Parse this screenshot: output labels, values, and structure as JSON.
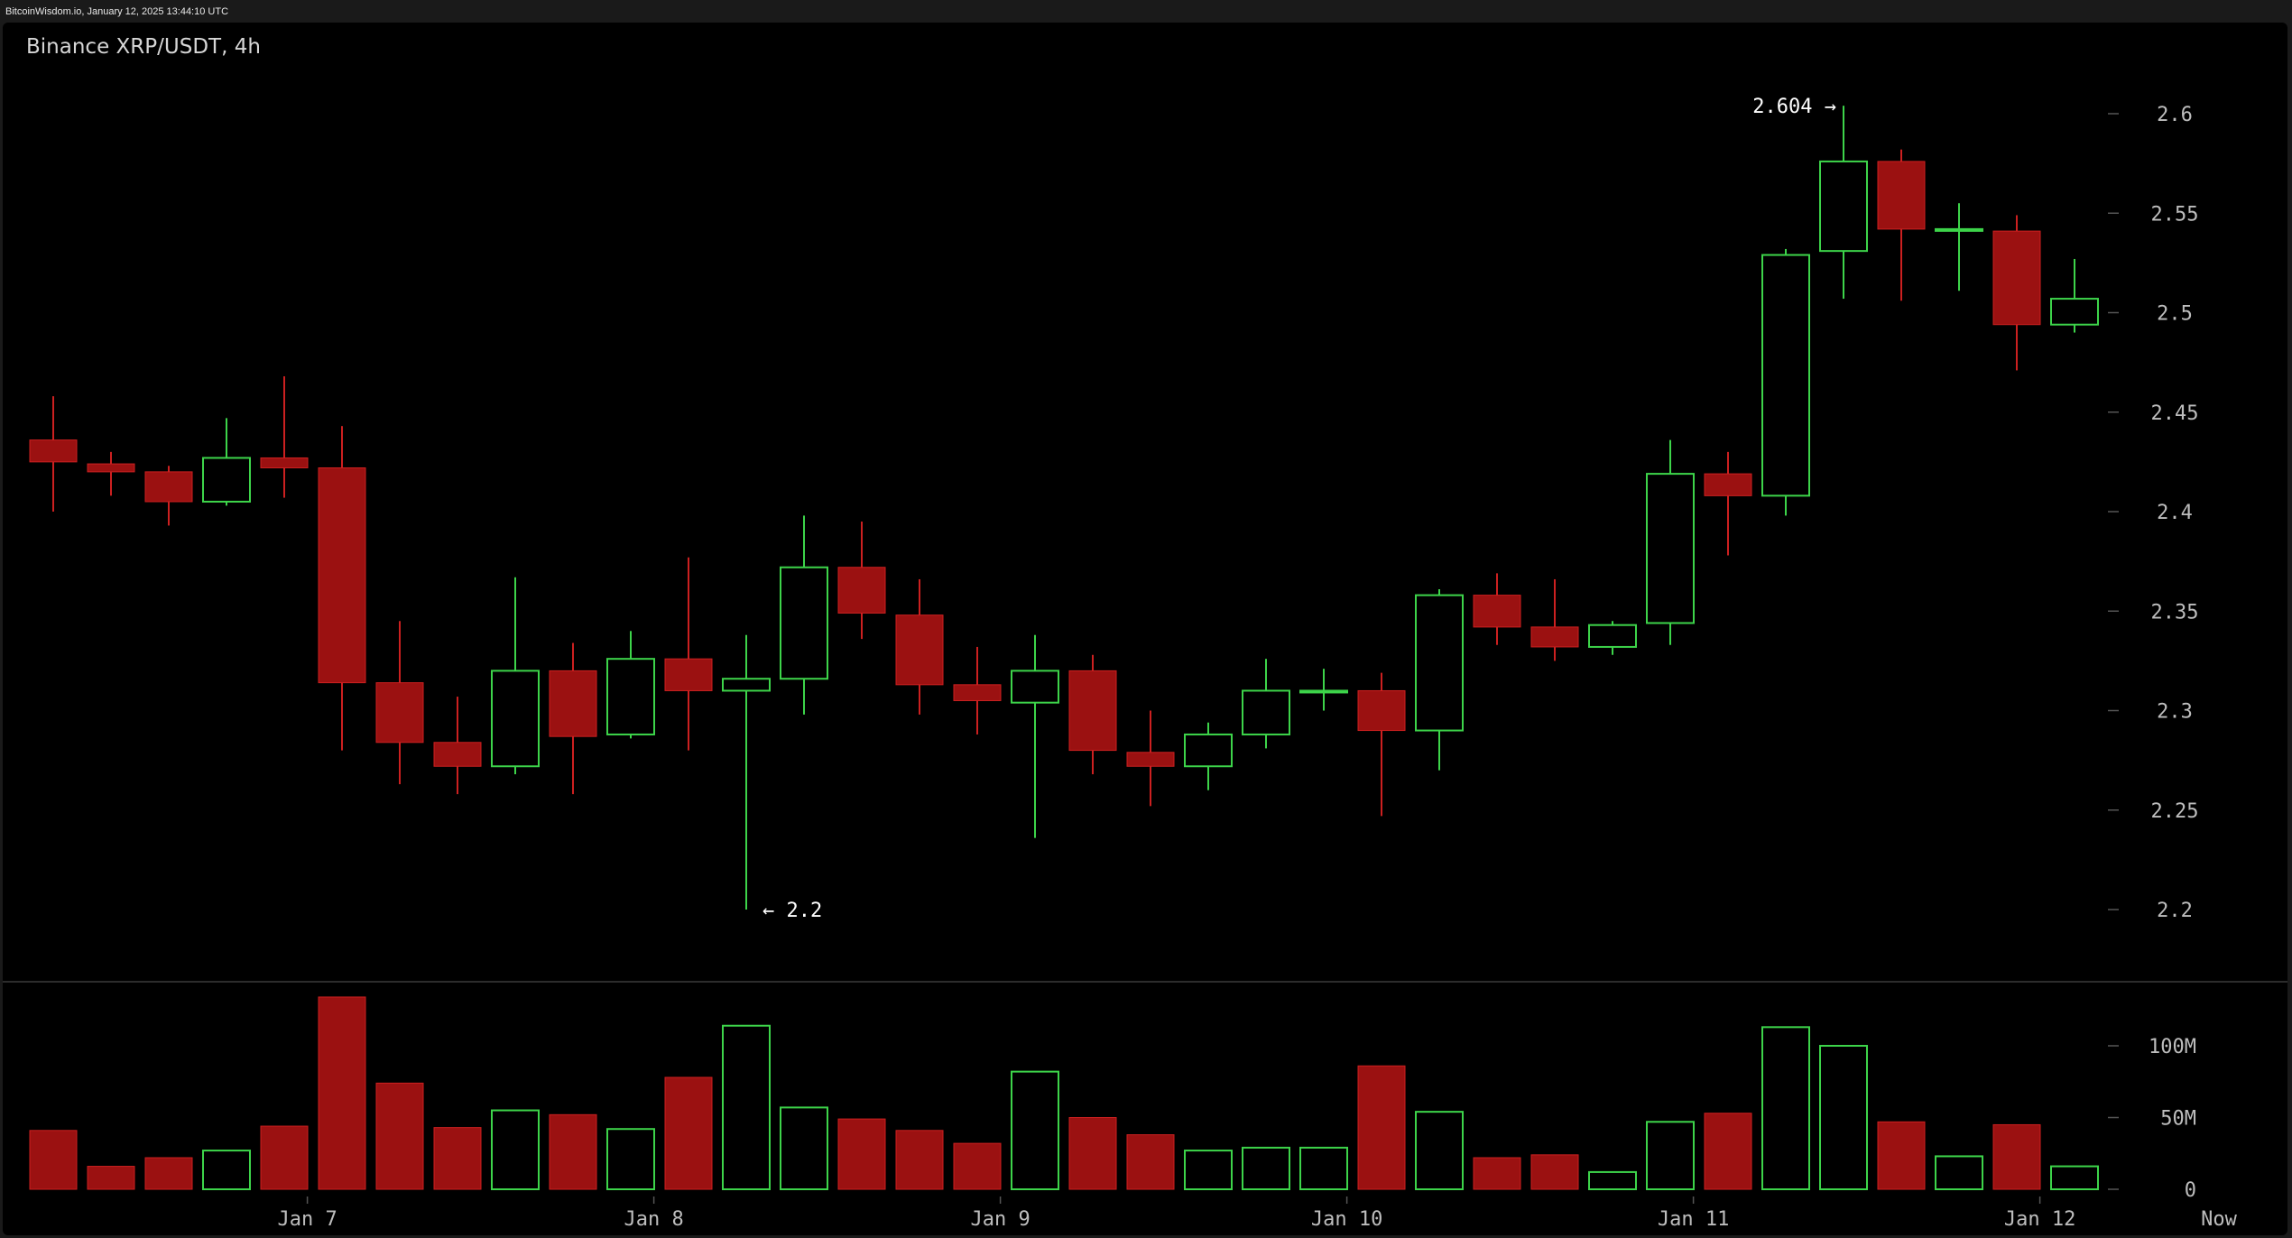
{
  "watermark": "BitcoinWisdom.io, January 12, 2025 13:44:10 UTC",
  "title": "Binance XRP/USDT, 4h",
  "colors": {
    "up": "#3dd44a",
    "down_fill": "#9b1111",
    "down_wick": "#cc2020",
    "frame": "#000000",
    "background": "#1a1a1a",
    "text": "#bdbdbd"
  },
  "chart_data": {
    "type": "candlestick",
    "pair": "XRP/USDT",
    "exchange": "Binance",
    "interval": "4h",
    "price_axis": {
      "ylim": [
        2.16,
        2.65
      ],
      "ticks": [
        2.6,
        2.55,
        2.5,
        2.45,
        2.4,
        2.35,
        2.3,
        2.25,
        2.2
      ],
      "tick_labels": [
        "2.6",
        "2.55",
        "2.5",
        "2.45",
        "2.4",
        "2.35",
        "2.3",
        "2.25",
        "2.2"
      ]
    },
    "volume_axis": {
      "ylim": [
        0,
        140
      ],
      "unit": "M",
      "ticks": [
        100,
        50,
        0
      ],
      "tick_labels": [
        "100M",
        "50M",
        "0"
      ]
    },
    "x_axis": {
      "tick_labels": [
        "Jan 7",
        "Jan 8",
        "Jan 9",
        "Jan 10",
        "Jan 11",
        "Jan 12",
        "Now"
      ],
      "tick_candle_index": [
        4.4,
        10.4,
        16.4,
        22.4,
        28.4,
        34.4,
        37.5
      ]
    },
    "annotations": [
      {
        "text": "2.604 →",
        "candle": 31,
        "price": 2.604,
        "side": "left"
      },
      {
        "text": "← 2.2",
        "candle": 12,
        "price": 2.2,
        "side": "right"
      }
    ],
    "candles": [
      {
        "open": 2.436,
        "high": 2.458,
        "low": 2.4,
        "close": 2.425,
        "volume": 41
      },
      {
        "open": 2.424,
        "high": 2.43,
        "low": 2.408,
        "close": 2.42,
        "volume": 16
      },
      {
        "open": 2.42,
        "high": 2.423,
        "low": 2.393,
        "close": 2.405,
        "volume": 22
      },
      {
        "open": 2.405,
        "high": 2.447,
        "low": 2.403,
        "close": 2.427,
        "volume": 27
      },
      {
        "open": 2.427,
        "high": 2.468,
        "low": 2.407,
        "close": 2.422,
        "volume": 44
      },
      {
        "open": 2.422,
        "high": 2.443,
        "low": 2.28,
        "close": 2.314,
        "volume": 134
      },
      {
        "open": 2.314,
        "high": 2.345,
        "low": 2.263,
        "close": 2.284,
        "volume": 74
      },
      {
        "open": 2.284,
        "high": 2.307,
        "low": 2.258,
        "close": 2.272,
        "volume": 43
      },
      {
        "open": 2.272,
        "high": 2.367,
        "low": 2.268,
        "close": 2.32,
        "volume": 55
      },
      {
        "open": 2.32,
        "high": 2.334,
        "low": 2.258,
        "close": 2.287,
        "volume": 52
      },
      {
        "open": 2.288,
        "high": 2.34,
        "low": 2.286,
        "close": 2.326,
        "volume": 42
      },
      {
        "open": 2.326,
        "high": 2.377,
        "low": 2.28,
        "close": 2.31,
        "volume": 78
      },
      {
        "open": 2.31,
        "high": 2.338,
        "low": 2.2,
        "close": 2.316,
        "volume": 114
      },
      {
        "open": 2.316,
        "high": 2.398,
        "low": 2.298,
        "close": 2.372,
        "volume": 57
      },
      {
        "open": 2.372,
        "high": 2.395,
        "low": 2.336,
        "close": 2.349,
        "volume": 49
      },
      {
        "open": 2.348,
        "high": 2.366,
        "low": 2.298,
        "close": 2.313,
        "volume": 41
      },
      {
        "open": 2.313,
        "high": 2.332,
        "low": 2.288,
        "close": 2.305,
        "volume": 32
      },
      {
        "open": 2.304,
        "high": 2.338,
        "low": 2.236,
        "close": 2.32,
        "volume": 82
      },
      {
        "open": 2.32,
        "high": 2.328,
        "low": 2.268,
        "close": 2.28,
        "volume": 50
      },
      {
        "open": 2.279,
        "high": 2.3,
        "low": 2.252,
        "close": 2.272,
        "volume": 38
      },
      {
        "open": 2.272,
        "high": 2.294,
        "low": 2.26,
        "close": 2.288,
        "volume": 27
      },
      {
        "open": 2.288,
        "high": 2.326,
        "low": 2.281,
        "close": 2.31,
        "volume": 29
      },
      {
        "open": 2.31,
        "high": 2.321,
        "low": 2.3,
        "close": 2.31,
        "volume": 29
      },
      {
        "open": 2.31,
        "high": 2.319,
        "low": 2.247,
        "close": 2.29,
        "volume": 86
      },
      {
        "open": 2.29,
        "high": 2.361,
        "low": 2.27,
        "close": 2.358,
        "volume": 54
      },
      {
        "open": 2.358,
        "high": 2.369,
        "low": 2.333,
        "close": 2.342,
        "volume": 22
      },
      {
        "open": 2.342,
        "high": 2.366,
        "low": 2.325,
        "close": 2.332,
        "volume": 24
      },
      {
        "open": 2.332,
        "high": 2.345,
        "low": 2.328,
        "close": 2.343,
        "volume": 12
      },
      {
        "open": 2.344,
        "high": 2.436,
        "low": 2.333,
        "close": 2.419,
        "volume": 47
      },
      {
        "open": 2.419,
        "high": 2.43,
        "low": 2.378,
        "close": 2.408,
        "volume": 53
      },
      {
        "open": 2.408,
        "high": 2.532,
        "low": 2.398,
        "close": 2.529,
        "volume": 113
      },
      {
        "open": 2.531,
        "high": 2.604,
        "low": 2.507,
        "close": 2.576,
        "volume": 100
      },
      {
        "open": 2.576,
        "high": 2.582,
        "low": 2.506,
        "close": 2.542,
        "volume": 47
      },
      {
        "open": 2.542,
        "high": 2.555,
        "low": 2.511,
        "close": 2.542,
        "volume": 23
      },
      {
        "open": 2.541,
        "high": 2.549,
        "low": 2.471,
        "close": 2.494,
        "volume": 45
      },
      {
        "open": 2.494,
        "high": 2.527,
        "low": 2.49,
        "close": 2.507,
        "volume": 16
      }
    ]
  }
}
